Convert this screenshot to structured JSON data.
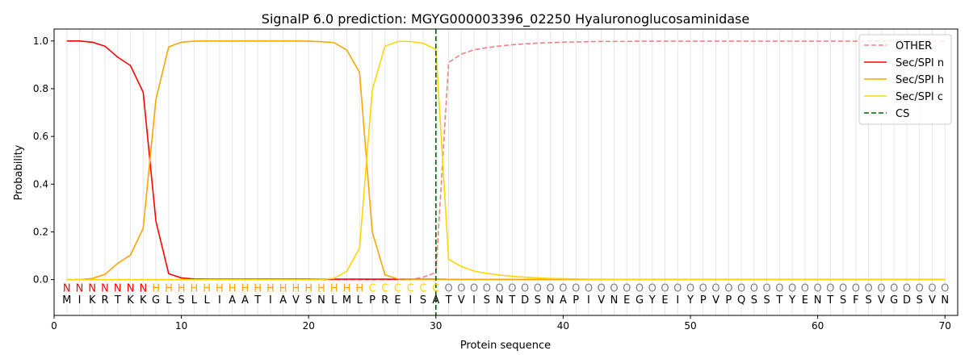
{
  "chart_data": {
    "type": "line",
    "title": "SignalP 6.0 prediction: MGYG000003396_02250 Hyaluronoglucosaminidase",
    "xlabel": "Protein sequence",
    "ylabel": "Probability",
    "xlim": [
      0,
      71
    ],
    "ylim": [
      -0.15,
      1.05
    ],
    "x_ticks": [
      0,
      10,
      20,
      30,
      40,
      50,
      60,
      70
    ],
    "y_ticks": [
      0.0,
      0.2,
      0.4,
      0.6,
      0.8,
      1.0
    ],
    "x_tick_labels": [
      "0",
      "10",
      "20",
      "30",
      "40",
      "50",
      "60",
      "70"
    ],
    "y_tick_labels": [
      "0.0",
      "0.2",
      "0.4",
      "0.6",
      "0.8",
      "1.0"
    ],
    "grid": "vertical lines at each residue",
    "legend_position": "top-right",
    "sequence": [
      "M",
      "I",
      "K",
      "R",
      "T",
      "K",
      "K",
      "G",
      "L",
      "S",
      "L",
      "L",
      "I",
      "A",
      "A",
      "T",
      "I",
      "A",
      "V",
      "S",
      "N",
      "L",
      "M",
      "L",
      "P",
      "R",
      "E",
      "I",
      "S",
      "A",
      "T",
      "V",
      "I",
      "S",
      "N",
      "T",
      "D",
      "S",
      "N",
      "A",
      "P",
      "I",
      "V",
      "N",
      "E",
      "G",
      "Y",
      "E",
      "I",
      "Y",
      "P",
      "V",
      "P",
      "Q",
      "S",
      "S",
      "T",
      "Y",
      "E",
      "N",
      "T",
      "S",
      "F",
      "S",
      "V",
      "G",
      "D",
      "S",
      "V",
      "N"
    ],
    "region_labels": [
      "N",
      "N",
      "N",
      "N",
      "N",
      "N",
      "N",
      "H",
      "H",
      "H",
      "H",
      "H",
      "H",
      "H",
      "H",
      "H",
      "H",
      "H",
      "H",
      "H",
      "H",
      "H",
      "H",
      "H",
      "C",
      "C",
      "C",
      "C",
      "C",
      "C",
      "O",
      "O",
      "O",
      "O",
      "O",
      "O",
      "O",
      "O",
      "O",
      "O",
      "O",
      "O",
      "O",
      "O",
      "O",
      "O",
      "O",
      "O",
      "O",
      "O",
      "O",
      "O",
      "O",
      "O",
      "O",
      "O",
      "O",
      "O",
      "O",
      "O",
      "O",
      "O",
      "O",
      "O",
      "O",
      "O",
      "O",
      "O",
      "O",
      "O"
    ],
    "region_colors": {
      "N": "#ff0000",
      "H": "#ffa500",
      "C": "#ffd700",
      "O": "#808080"
    },
    "cleavage_site": 30,
    "series": [
      {
        "name": "OTHER",
        "color": "#f08080",
        "dash": true,
        "values": [
          0,
          0,
          0,
          0,
          0,
          0,
          0,
          0,
          0,
          0,
          0,
          0,
          0,
          0,
          0,
          0,
          0,
          0,
          0,
          0,
          0,
          0,
          0,
          0,
          0,
          0,
          0,
          0,
          0.01,
          0.03,
          0.91,
          0.945,
          0.963,
          0.972,
          0.979,
          0.984,
          0.988,
          0.991,
          0.993,
          0.995,
          0.996,
          0.997,
          0.998,
          0.998,
          0.998,
          0.999,
          0.999,
          0.999,
          0.999,
          0.999,
          0.999,
          0.999,
          0.999,
          0.999,
          0.999,
          0.999,
          0.999,
          0.999,
          0.999,
          0.999,
          0.999,
          0.999,
          0.999,
          0.999,
          0.999,
          0.999,
          0.999,
          0.999,
          0.999,
          0.999
        ]
      },
      {
        "name": "Sec/SPI n",
        "color": "#ff0000",
        "dash": false,
        "values": [
          1.0,
          1.0,
          0.995,
          0.978,
          0.932,
          0.897,
          0.785,
          0.245,
          0.025,
          0.007,
          0.003,
          0.002,
          0.002,
          0.002,
          0.002,
          0.002,
          0.002,
          0.002,
          0.002,
          0.002,
          0.002,
          0.002,
          0.002,
          0.002,
          0.002,
          0.002,
          0.002,
          0.002,
          0.002,
          0.002,
          0.001,
          0.001,
          0.001,
          0.001,
          0.001,
          0.001,
          0.001,
          0.001,
          0.001,
          0.001,
          0.001,
          0.001,
          0.001,
          0.001,
          0.001,
          0.001,
          0.001,
          0.001,
          0.001,
          0.001,
          0.001,
          0.001,
          0.001,
          0.001,
          0.001,
          0.001,
          0.001,
          0.001,
          0.001,
          0.001,
          0.001,
          0.001,
          0.001,
          0.001,
          0.001,
          0.001,
          0.001,
          0.001,
          0.001,
          0.001
        ]
      },
      {
        "name": "Sec/SPI h",
        "color": "#ffa500",
        "dash": false,
        "values": [
          0.0,
          0.0,
          0.005,
          0.022,
          0.068,
          0.103,
          0.215,
          0.755,
          0.975,
          0.995,
          0.999,
          1.0,
          1.0,
          1.0,
          1.0,
          1.0,
          1.0,
          1.0,
          1.0,
          0.999,
          0.997,
          0.993,
          0.962,
          0.868,
          0.2,
          0.02,
          0.003,
          0.002,
          0.002,
          0.002,
          0.001,
          0.001,
          0.001,
          0.001,
          0.001,
          0.001,
          0.001,
          0.001,
          0.001,
          0.001,
          0.001,
          0.001,
          0.001,
          0.001,
          0.001,
          0.001,
          0.001,
          0.001,
          0.001,
          0.001,
          0.001,
          0.001,
          0.001,
          0.001,
          0.001,
          0.001,
          0.001,
          0.001,
          0.001,
          0.001,
          0.001,
          0.001,
          0.001,
          0.001,
          0.001,
          0.001,
          0.001,
          0.001,
          0.001,
          0.001
        ]
      },
      {
        "name": "Sec/SPI c",
        "color": "#ffd700",
        "dash": false,
        "values": [
          0,
          0,
          0,
          0,
          0,
          0,
          0,
          0,
          0,
          0,
          0,
          0,
          0,
          0,
          0,
          0,
          0,
          0,
          0,
          0,
          0.001,
          0.005,
          0.035,
          0.132,
          0.795,
          0.978,
          0.998,
          0.998,
          0.99,
          0.965,
          0.085,
          0.055,
          0.036,
          0.026,
          0.019,
          0.014,
          0.01,
          0.007,
          0.005,
          0.004,
          0.003,
          0.002,
          0.002,
          0.001,
          0.001,
          0.001,
          0.001,
          0.001,
          0.001,
          0.001,
          0.001,
          0.001,
          0.001,
          0.001,
          0.001,
          0.001,
          0.001,
          0.001,
          0.001,
          0.001,
          0.001,
          0.001,
          0.001,
          0.001,
          0.001,
          0.001,
          0.001,
          0.001,
          0.001,
          0.001
        ]
      },
      {
        "name": "CS",
        "color": "#006400",
        "dash": true,
        "vertical_at": 30
      }
    ]
  }
}
